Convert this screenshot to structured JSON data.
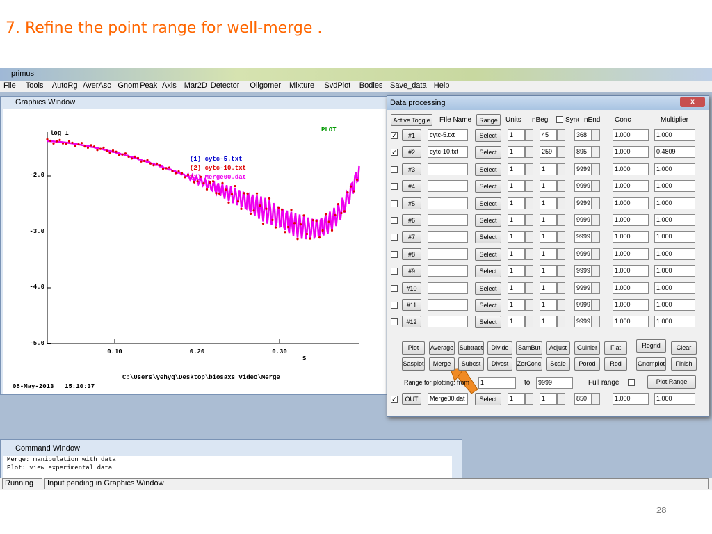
{
  "slide": {
    "title": "7. Refine the point range for well-merge .",
    "page_number": "28"
  },
  "app": {
    "title": "primus",
    "menu": [
      "File",
      "Tools",
      "AutoRg",
      "AverAsc",
      "Gnom",
      "Peak",
      "Axis",
      "Mar2D",
      "Detector",
      "Oligomer",
      "Mixture",
      "SvdPlot",
      "Bodies",
      "Save_data",
      "Help"
    ]
  },
  "graphics_window": {
    "title": "Graphics Window",
    "y_label": "log I",
    "plot_label": "PLOT",
    "legend": [
      {
        "text": "(1) cytc-5.txt",
        "color": "#0000cc"
      },
      {
        "text": "(2) cytc-10.txt",
        "color": "#dd0000"
      },
      {
        "text": "(3) Merge00.dat",
        "color": "#ee00ee"
      }
    ],
    "yticks": [
      "-2.0",
      "-3.0",
      "-4.0",
      "-5.0"
    ],
    "xticks": [
      "0.10",
      "0.20",
      "0.30"
    ],
    "x_label": "S",
    "path": "C:\\Users\\yehyq\\Desktop\\biosaxs video\\Merge",
    "date": "08-May-2013",
    "time": "15:10:37"
  },
  "data_processing": {
    "title": "Data processing",
    "header": {
      "toggle": "Active Toggle",
      "file": "FIle Name",
      "range": "Range",
      "units": "Units",
      "nbeg": "nBeg",
      "sync": "Sync",
      "nend": "nEnd",
      "conc": "Conc",
      "multiplier": "Multiplier"
    },
    "rows": [
      {
        "checked": true,
        "id": "#1",
        "file": "cytc-5.txt",
        "select": "Select",
        "units": "1",
        "nbeg": "45",
        "nend": "368",
        "conc": "1.000",
        "multiplier": "1.000"
      },
      {
        "checked": true,
        "id": "#2",
        "file": "cytc-10.txt",
        "select": "Select",
        "units": "1",
        "nbeg": "259",
        "nend": "895",
        "conc": "1.000",
        "multiplier": "0.4809"
      },
      {
        "checked": false,
        "id": "#3",
        "file": "",
        "select": "Select",
        "units": "1",
        "nbeg": "1",
        "nend": "9999",
        "conc": "1.000",
        "multiplier": "1.000"
      },
      {
        "checked": false,
        "id": "#4",
        "file": "",
        "select": "Select",
        "units": "1",
        "nbeg": "1",
        "nend": "9999",
        "conc": "1.000",
        "multiplier": "1.000"
      },
      {
        "checked": false,
        "id": "#5",
        "file": "",
        "select": "Select",
        "units": "1",
        "nbeg": "1",
        "nend": "9999",
        "conc": "1.000",
        "multiplier": "1.000"
      },
      {
        "checked": false,
        "id": "#6",
        "file": "",
        "select": "Select",
        "units": "1",
        "nbeg": "1",
        "nend": "9999",
        "conc": "1.000",
        "multiplier": "1.000"
      },
      {
        "checked": false,
        "id": "#7",
        "file": "",
        "select": "Select",
        "units": "1",
        "nbeg": "1",
        "nend": "9999",
        "conc": "1.000",
        "multiplier": "1.000"
      },
      {
        "checked": false,
        "id": "#8",
        "file": "",
        "select": "Select",
        "units": "1",
        "nbeg": "1",
        "nend": "9999",
        "conc": "1.000",
        "multiplier": "1.000"
      },
      {
        "checked": false,
        "id": "#9",
        "file": "",
        "select": "Select",
        "units": "1",
        "nbeg": "1",
        "nend": "9999",
        "conc": "1.000",
        "multiplier": "1.000"
      },
      {
        "checked": false,
        "id": "#10",
        "file": "",
        "select": "Select",
        "units": "1",
        "nbeg": "1",
        "nend": "9999",
        "conc": "1.000",
        "multiplier": "1.000"
      },
      {
        "checked": false,
        "id": "#11",
        "file": "",
        "select": "Select",
        "units": "1",
        "nbeg": "1",
        "nend": "9999",
        "conc": "1.000",
        "multiplier": "1.000"
      },
      {
        "checked": false,
        "id": "#12",
        "file": "",
        "select": "Select",
        "units": "1",
        "nbeg": "1",
        "nend": "9999",
        "conc": "1.000",
        "multiplier": "1.000"
      }
    ],
    "buttons": [
      [
        "Plot",
        "Average",
        "Subtract",
        "Divide",
        "SamBut",
        "Adjust",
        "Guinier",
        "Flat",
        "Regrid",
        "Clear"
      ],
      [
        "Sasplot",
        "Merge",
        "Subcst",
        "Divcst",
        "ZerConc",
        "Scale",
        "Porod",
        "Rod",
        "Gnomplot",
        "Finish"
      ]
    ],
    "range": {
      "label": "Range for plotting: from",
      "from": "1",
      "to_label": "to",
      "to": "9999",
      "full_range": "Full range",
      "plot_range": "Plot Range"
    },
    "out": {
      "checked": true,
      "id": "OUT",
      "file": "Merge00.dat",
      "select": "Select",
      "units": "1",
      "nbeg": "1",
      "nend": "850",
      "conc": "1.000",
      "multiplier": "1.000"
    }
  },
  "command_window": {
    "title": "Command Window",
    "lines": [
      "Merge: manipulation with data",
      "Plot: view experimental data"
    ]
  },
  "status_bar": [
    "Running",
    "Input pending in Graphics Window"
  ]
}
